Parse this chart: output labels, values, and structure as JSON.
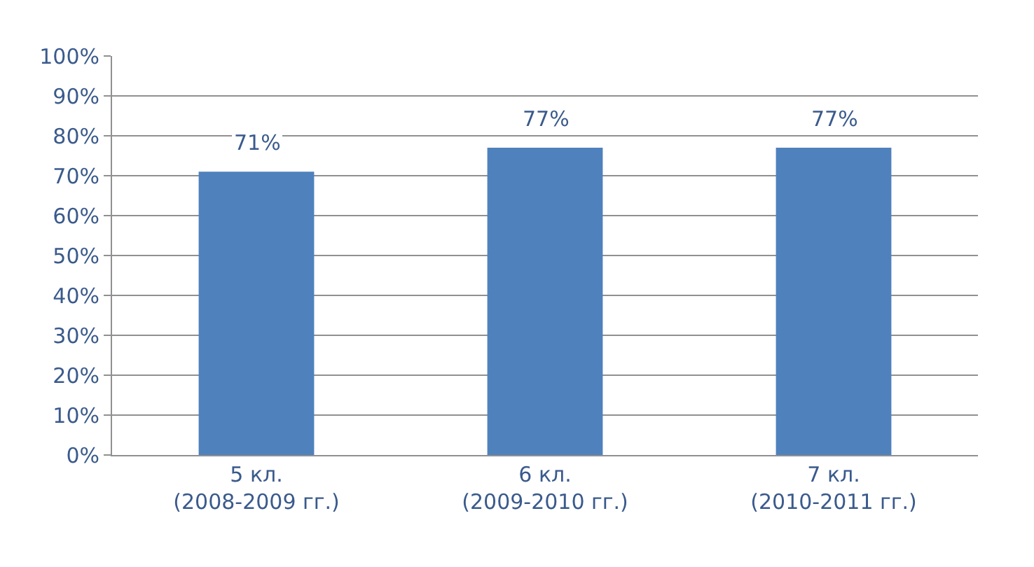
{
  "chart_data": {
    "type": "bar",
    "categories": [
      "5 кл.\n(2008-2009 гг.)",
      "6 кл.\n(2009-2010 гг.)",
      "7 кл.\n(2010-2011 гг.)"
    ],
    "values": [
      71,
      77,
      77
    ],
    "value_labels": [
      "71%",
      "77%",
      "77%"
    ],
    "color": "#4f81bd",
    "ylim": [
      0,
      100
    ],
    "yticks": [
      {
        "value": 0,
        "label": "0%"
      },
      {
        "value": 10,
        "label": "10%"
      },
      {
        "value": 20,
        "label": "20%"
      },
      {
        "value": 30,
        "label": "30%"
      },
      {
        "value": 40,
        "label": "40%"
      },
      {
        "value": 50,
        "label": "50%"
      },
      {
        "value": 60,
        "label": "60%"
      },
      {
        "value": 70,
        "label": "70%"
      },
      {
        "value": 80,
        "label": "80%"
      },
      {
        "value": 90,
        "label": "90%"
      },
      {
        "value": 100,
        "label": "100%"
      }
    ],
    "grid": "y"
  }
}
